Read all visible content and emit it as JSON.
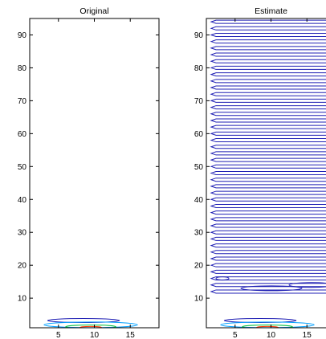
{
  "chart_data": [
    {
      "type": "contour",
      "title": "Original",
      "xlim": [
        1,
        19
      ],
      "ylim": [
        1,
        95
      ],
      "xticks": [
        5,
        10,
        15
      ],
      "yticks": [
        10,
        20,
        30,
        40,
        50,
        60,
        70,
        80,
        90
      ],
      "contours": [
        {
          "level": 1,
          "color": "#1f1fb4",
          "x_range": [
            3.5,
            13.5
          ],
          "y": 3.2
        },
        {
          "level": 2,
          "color": "#00a0ff",
          "x_range": [
            3,
            16
          ],
          "y": 1.9
        },
        {
          "level": 3,
          "color": "#00c040",
          "x_range": [
            6,
            13
          ],
          "y": 1.3
        },
        {
          "level": 4,
          "color": "#ff3300",
          "x_range": [
            8,
            11
          ],
          "y": 1.1
        }
      ]
    },
    {
      "type": "contour",
      "title": "Estimate",
      "xlim": [
        1,
        19
      ],
      "ylim": [
        1,
        95
      ],
      "xticks": [
        5,
        10,
        15
      ],
      "yticks": [
        10,
        20,
        30,
        40,
        50,
        60,
        70,
        80,
        90
      ],
      "contours": [
        {
          "level": 1,
          "color": "#1f1fb4",
          "pattern": "stacked horizontal loops",
          "y_range": [
            12,
            95
          ],
          "spacing": 2
        }
      ]
    }
  ]
}
